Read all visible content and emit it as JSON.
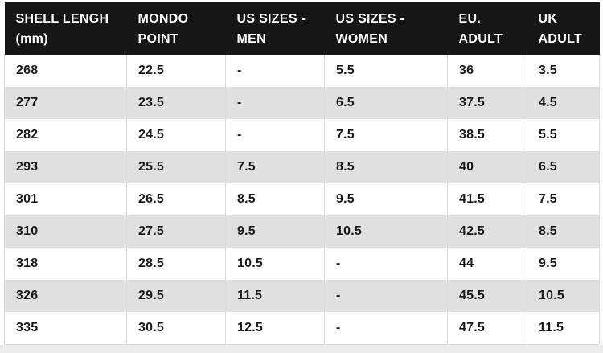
{
  "chart_data": {
    "type": "table",
    "columns": [
      {
        "id": "shell-length",
        "line1": "SHELL LENGH",
        "line2": "(mm)",
        "label": "SHELL LENGH (mm)"
      },
      {
        "id": "mondo-point",
        "line1": "MONDO",
        "line2": "POINT",
        "label": "MONDO POINT"
      },
      {
        "id": "us-sizes-men",
        "line1": "US SIZES -",
        "line2": "MEN",
        "label": "US SIZES - MEN"
      },
      {
        "id": "us-sizes-women",
        "line1": "US SIZES -",
        "line2": "WOMEN",
        "label": "US SIZES - WOMEN"
      },
      {
        "id": "eu-adult",
        "line1": "EU.",
        "line2": "ADULT",
        "label": "EU. ADULT"
      },
      {
        "id": "uk-adult",
        "line1": "UK",
        "line2": "ADULT",
        "label": "UK ADULT"
      }
    ],
    "rows": [
      [
        "268",
        "22.5",
        "-",
        "5.5",
        "36",
        "3.5"
      ],
      [
        "277",
        "23.5",
        "-",
        "6.5",
        "37.5",
        "4.5"
      ],
      [
        "282",
        "24.5",
        "-",
        "7.5",
        "38.5",
        "5.5"
      ],
      [
        "293",
        "25.5",
        "7.5",
        "8.5",
        "40",
        "6.5"
      ],
      [
        "301",
        "26.5",
        "8.5",
        "9.5",
        "41.5",
        "7.5"
      ],
      [
        "310",
        "27.5",
        "9.5",
        "10.5",
        "42.5",
        "8.5"
      ],
      [
        "318",
        "28.5",
        "10.5",
        "-",
        "44",
        "9.5"
      ],
      [
        "326",
        "29.5",
        "11.5",
        "-",
        "45.5",
        "10.5"
      ],
      [
        "335",
        "30.5",
        "12.5",
        "-",
        "47.5",
        "11.5"
      ]
    ]
  },
  "colors": {
    "header_bg": "#161616",
    "header_text": "#ffffff",
    "text": "#1a1a1a",
    "row_alt_bg": "#e0e0e0",
    "border": "#dcdcdc",
    "page_bg": "#ffffff",
    "footer_strip": "#ececec"
  }
}
